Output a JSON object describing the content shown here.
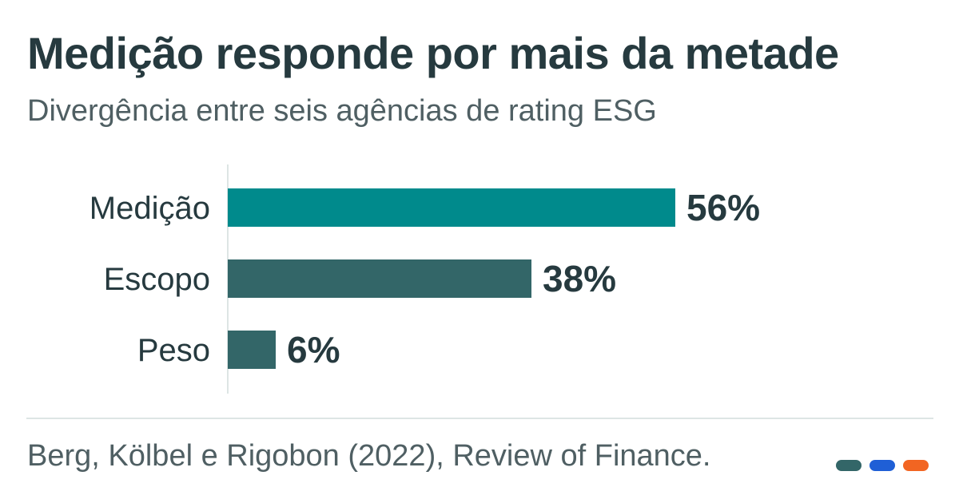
{
  "header": {
    "title": "Medição responde por mais da metade",
    "subtitle": "Divergência entre seis agências de rating ESG"
  },
  "chart_data": {
    "type": "bar",
    "orientation": "horizontal",
    "title": "Medição responde por mais da metade",
    "subtitle": "Divergência entre seis agências de rating ESG",
    "categories": [
      "Medição",
      "Escopo",
      "Peso"
    ],
    "values": [
      56,
      38,
      6
    ],
    "value_labels": [
      "56%",
      "38%",
      "6%"
    ],
    "unit": "%",
    "xlim": [
      0,
      100
    ],
    "xlabel": "",
    "ylabel": "",
    "grid": false,
    "legend": "none",
    "colors": {
      "highlight": "#008a8c",
      "default": "#336668",
      "axis": "#dde5e4"
    }
  },
  "footer": {
    "source": "Berg, Kölbel e Rigobon (2022), Review of Finance.",
    "brand_dot_colors": [
      "#336668",
      "#1f5fd6",
      "#f26522"
    ]
  }
}
